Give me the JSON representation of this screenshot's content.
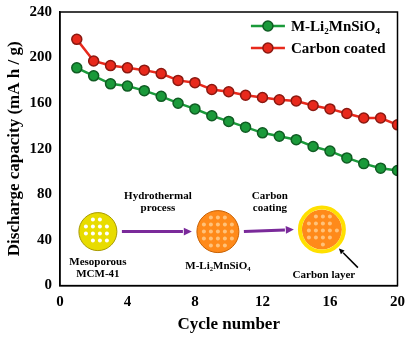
{
  "chart_data": {
    "type": "line",
    "x_label": "Cycle number",
    "y_label": "Discharge capacity (mA h / g)",
    "x": [
      1,
      2,
      3,
      4,
      5,
      6,
      7,
      8,
      9,
      10,
      11,
      12,
      13,
      14,
      15,
      16,
      17,
      18,
      19,
      20
    ],
    "series": [
      {
        "name": "M-Li₂MnSiO₄",
        "color": "#1a9a3a",
        "marker": "circle",
        "values": [
          191,
          184,
          177,
          175,
          171,
          166,
          160,
          155,
          149,
          144,
          139,
          134,
          131,
          128,
          122,
          118,
          112,
          107,
          103,
          101
        ]
      },
      {
        "name": "Carbon coated",
        "color": "#e8291c",
        "marker": "circle",
        "values": [
          216,
          197,
          193,
          191,
          189,
          186,
          180,
          178,
          172,
          170,
          167,
          165,
          163,
          162,
          158,
          155,
          151,
          147,
          147,
          141
        ]
      }
    ],
    "xlim": [
      0,
      20
    ],
    "xticks": [
      0,
      4,
      8,
      12,
      16,
      20
    ],
    "ylim": [
      0,
      240
    ],
    "yticks": [
      0,
      40,
      80,
      120,
      160,
      200,
      240
    ],
    "grid": false,
    "legend": "upper right",
    "annotations": [
      "Mesoporous MCM-41",
      "Hydrothermal process",
      "M-Li₂MnSiO₄",
      "Carbon coating",
      "Carbon layer"
    ]
  }
}
